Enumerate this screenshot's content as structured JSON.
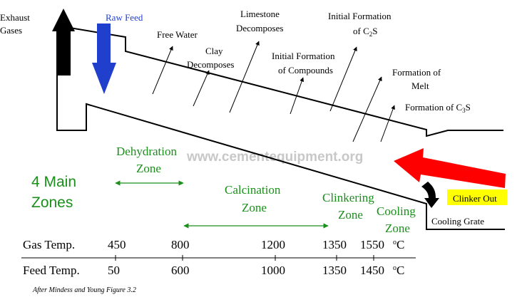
{
  "labels": {
    "exhaust_1": "Exhaust",
    "exhaust_2": "Gases",
    "raw_feed": "Raw Feed",
    "free_water": "Free Water",
    "clay_1": "Clay",
    "clay_2": "Decomposes",
    "limestone_1": "Limestone",
    "limestone_2": "Decomposes",
    "init_compounds_1": "Initial Formation",
    "init_compounds_2": "of Compounds",
    "init_c2s_1": "Initial Formation",
    "init_c2s_2_pre": "of C",
    "init_c2s_2_sub": "2",
    "init_c2s_2_post": "S",
    "melt_1": "Formation of",
    "melt_2": "Melt",
    "c3s_pre": "Formation of C",
    "c3s_sub": "3",
    "c3s_post": "S",
    "clinker_out": "Clinker Out",
    "cooling_grate": "Cooling Grate",
    "source_note": "After Mindess and Young Figure 3.2",
    "watermark": "www.cementequipment.org"
  },
  "zones": {
    "main_1": "4 Main",
    "main_2": "Zones",
    "dehydration_1": "Dehydration",
    "dehydration_2": "Zone",
    "calcination_1": "Calcination",
    "calcination_2": "Zone",
    "clinkering_1": "Clinkering",
    "clinkering_2": "Zone",
    "cooling_1": "Cooling",
    "cooling_2": "Zone"
  },
  "temperatures": {
    "gas_label": "Gas Temp.",
    "feed_label": "Feed Temp.",
    "gas": [
      "450",
      "800",
      "1200",
      "1350",
      "1550"
    ],
    "feed": [
      "50",
      "600",
      "1000",
      "1350",
      "1450"
    ],
    "unit_deg": "o",
    "unit_c": "C"
  },
  "colors": {
    "zone_green": "#1a8f1a",
    "raw_feed_blue": "#1f3fcc",
    "hot_gas_red": "#ff0000",
    "clinker_box": "#ffff00",
    "watermark_gray": "#c8c8c8"
  }
}
